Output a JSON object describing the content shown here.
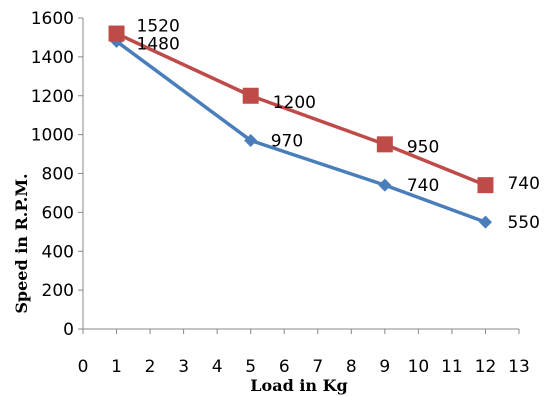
{
  "chart_data": {
    "type": "line",
    "title": "",
    "xlabel": "Load in Kg",
    "ylabel": "Speed in R.P.M.",
    "xlim": [
      0,
      13
    ],
    "ylim": [
      0,
      1600
    ],
    "x_ticks": [
      "0",
      "1",
      "2",
      "3",
      "4",
      "5",
      "6",
      "7",
      "8",
      "9",
      "10",
      "11",
      "12",
      "13"
    ],
    "y_ticks": [
      "0",
      "200",
      "400",
      "600",
      "800",
      "1000",
      "1200",
      "1400",
      "1600"
    ],
    "grid": false,
    "legend": "none",
    "series": [
      {
        "x": [
          1,
          5,
          9,
          12
        ],
        "y": [
          1480,
          970,
          740,
          550
        ],
        "labels": [
          "1480",
          "970",
          "740",
          "550"
        ],
        "color": "#4a7ebb",
        "marker": "diamond"
      },
      {
        "x": [
          1,
          5,
          9,
          12
        ],
        "y": [
          1520,
          1200,
          950,
          740
        ],
        "labels": [
          "1520",
          "1200",
          "950",
          "740"
        ],
        "color": "#be4b48",
        "marker": "square"
      }
    ]
  }
}
